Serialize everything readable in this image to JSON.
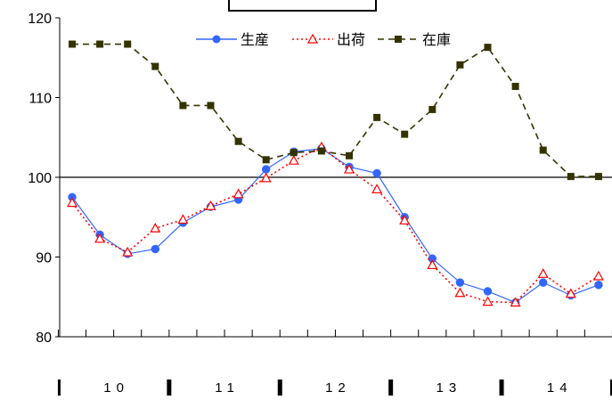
{
  "chart_data": {
    "type": "line",
    "x": [
      1,
      2,
      3,
      4,
      5,
      6,
      7,
      8,
      9,
      10,
      11,
      12,
      13,
      14,
      15,
      16,
      17,
      18,
      19,
      20
    ],
    "ylim": [
      80,
      120
    ],
    "yticks": [
      "80",
      "90",
      "100",
      "110",
      "120"
    ],
    "reference_line": 100,
    "year_labels": [
      "10",
      "11",
      "12",
      "13",
      "14"
    ],
    "year_spans": [
      [
        1,
        4
      ],
      [
        5,
        8
      ],
      [
        9,
        12
      ],
      [
        13,
        16
      ],
      [
        17,
        20
      ]
    ],
    "legend_position": "top-center",
    "series": [
      {
        "name": "生産",
        "color": "#3366ff",
        "style": "solid-circle",
        "values": [
          97.5,
          92.8,
          90.4,
          91.0,
          94.3,
          96.3,
          97.2,
          101.0,
          103.2,
          103.6,
          101.3,
          100.5,
          95.0,
          89.8,
          86.8,
          85.7,
          84.3,
          86.8,
          85.2,
          86.5
        ]
      },
      {
        "name": "出荷",
        "color": "#ff0000",
        "style": "dotted-triangle",
        "values": [
          96.8,
          92.3,
          90.6,
          93.6,
          94.7,
          96.4,
          97.9,
          99.9,
          102.1,
          103.8,
          101.0,
          98.5,
          94.6,
          89.0,
          85.5,
          84.4,
          84.3,
          87.9,
          85.4,
          87.6
        ]
      },
      {
        "name": "在庫",
        "color": "#333300",
        "style": "dashed-square",
        "values": [
          116.7,
          116.7,
          116.7,
          113.9,
          109.0,
          109.0,
          104.5,
          102.2,
          103.1,
          103.3,
          102.7,
          107.5,
          105.4,
          108.5,
          114.1,
          116.3,
          111.4,
          103.4,
          100.1,
          100.1
        ]
      }
    ]
  }
}
